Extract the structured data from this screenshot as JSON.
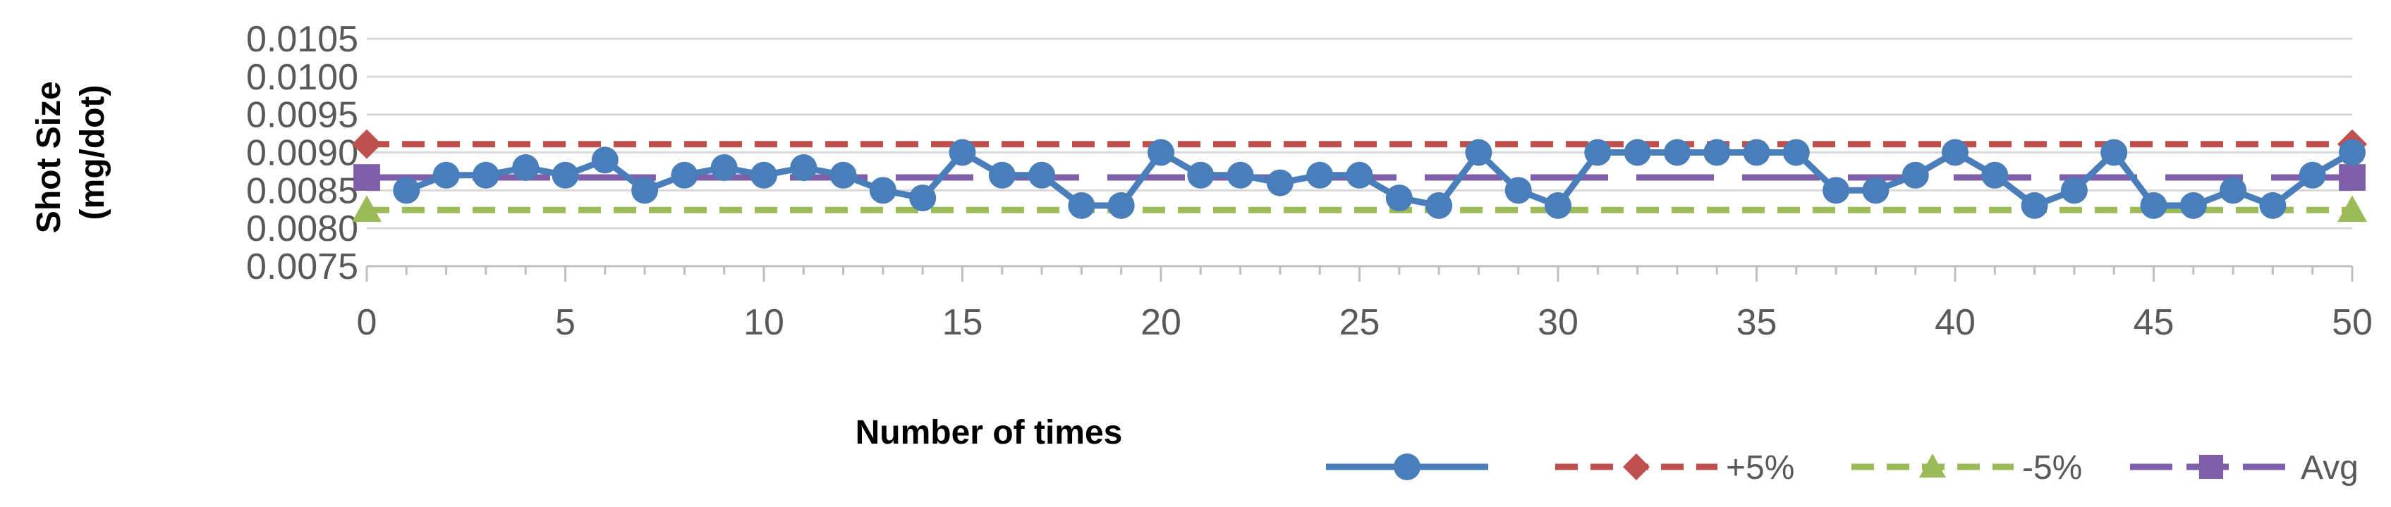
{
  "chart_data": {
    "type": "line",
    "xlabel": "Number of times",
    "ylabel_lines": [
      "Shot Size",
      "(mg/dot)"
    ],
    "xlim": [
      0,
      50
    ],
    "ylim": [
      0.0075,
      0.0105
    ],
    "x_ticks": [
      "0",
      "5",
      "10",
      "15",
      "20",
      "25",
      "30",
      "35",
      "40",
      "45",
      "50"
    ],
    "y_ticks": [
      "0.0075",
      "0.0080",
      "0.0085",
      "0.0090",
      "0.0095",
      "0.0100",
      "0.0105"
    ],
    "grid": true,
    "legend_position": "bottom-right",
    "series": [
      {
        "name": "",
        "color": "#4A7EBB",
        "style": "solid",
        "marker": "circle",
        "x": [
          1,
          2,
          3,
          4,
          5,
          6,
          7,
          8,
          9,
          10,
          11,
          12,
          13,
          14,
          15,
          16,
          17,
          18,
          19,
          20,
          21,
          22,
          23,
          24,
          25,
          26,
          27,
          28,
          29,
          30,
          31,
          32,
          33,
          34,
          35,
          36,
          37,
          38,
          39,
          40,
          41,
          42,
          43,
          44,
          45,
          46,
          47,
          48,
          49,
          50
        ],
        "values": [
          0.0085,
          0.0087,
          0.0087,
          0.0088,
          0.0087,
          0.0089,
          0.0085,
          0.0087,
          0.0088,
          0.0087,
          0.0088,
          0.0087,
          0.0085,
          0.0084,
          0.009,
          0.0087,
          0.0087,
          0.0083,
          0.0083,
          0.009,
          0.0087,
          0.0087,
          0.0086,
          0.0087,
          0.0087,
          0.0084,
          0.0083,
          0.009,
          0.0085,
          0.0083,
          0.009,
          0.009,
          0.009,
          0.009,
          0.009,
          0.009,
          0.0085,
          0.0085,
          0.0087,
          0.009,
          0.0087,
          0.0083,
          0.0085,
          0.009,
          0.0083,
          0.0083,
          0.0085,
          0.0083,
          0.0087,
          0.009
        ]
      },
      {
        "name": "+5%",
        "color": "#C0504D",
        "style": "dashed",
        "marker": "diamond",
        "x": [
          0,
          50
        ],
        "values": [
          0.00911,
          0.00911
        ],
        "marker_x": [
          0,
          50
        ]
      },
      {
        "name": "-5%",
        "color": "#9BBB59",
        "style": "dashed",
        "marker": "triangle",
        "x": [
          0,
          50
        ],
        "values": [
          0.00824,
          0.00824
        ],
        "marker_x": [
          0,
          50
        ]
      },
      {
        "name": "Avg",
        "color": "#7F5FA9",
        "style": "longdash",
        "marker": "square",
        "x": [
          0,
          50
        ],
        "values": [
          0.00867,
          0.00867
        ],
        "marker_x": [
          0,
          50
        ]
      }
    ]
  }
}
